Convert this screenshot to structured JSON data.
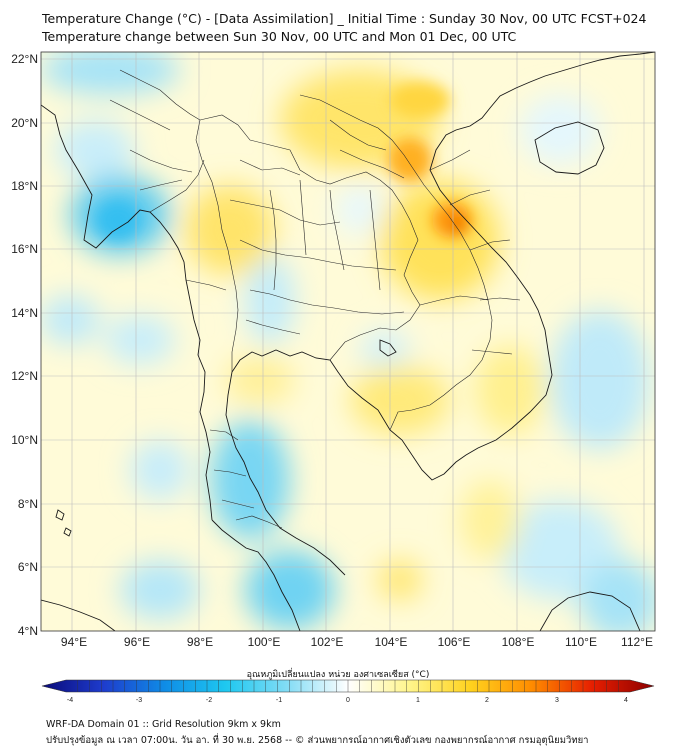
{
  "title_line1": "Temperature Change (°C) - [Data Assimilation] _ Initial Time : Sunday 30 Nov, 00 UTC FCST+024",
  "title_line2": "Temperature change between Sun 30 Nov, 00 UTC and Mon 01 Dec, 00 UTC",
  "lat_labels": [
    "22°N",
    "20°N",
    "18°N",
    "16°N",
    "14°N",
    "12°N",
    "10°N",
    "8°N",
    "6°N",
    "4°N"
  ],
  "lon_labels": [
    "94°E",
    "96°E",
    "98°E",
    "100°E",
    "102°E",
    "104°E",
    "106°E",
    "108°E",
    "110°E",
    "112°E"
  ],
  "colorbar": {
    "label": "อุณหภูมิเปลี่ยนแปลง หน่วย องศาเซลเซียส (°C)",
    "tick_labels": [
      "-4",
      "-3",
      "-2",
      "-1",
      "0",
      "1",
      "2",
      "3",
      "4"
    ],
    "colors": [
      "#0a0a78",
      "#1e3ccd",
      "#0f8ce6",
      "#1ec8f0",
      "#82dcf5",
      "#ffffff",
      "#fff58c",
      "#ffd21e",
      "#ff8c00",
      "#e61e00",
      "#8c0000"
    ]
  },
  "footer_line1": "WRF-DA Domain 01 :: Grid Resolution 9km x 9km",
  "footer_line2": "ปรับปรุงข้อมูล ณ เวลา 07:00น. วัน อา. ที่ 30 พ.ย. 2568 -- © ส่วนพยากรณ์อากาศเชิงตัวเลข กองพยากรณ์อากาศ กรมอุตุนิยมวิทยา"
}
